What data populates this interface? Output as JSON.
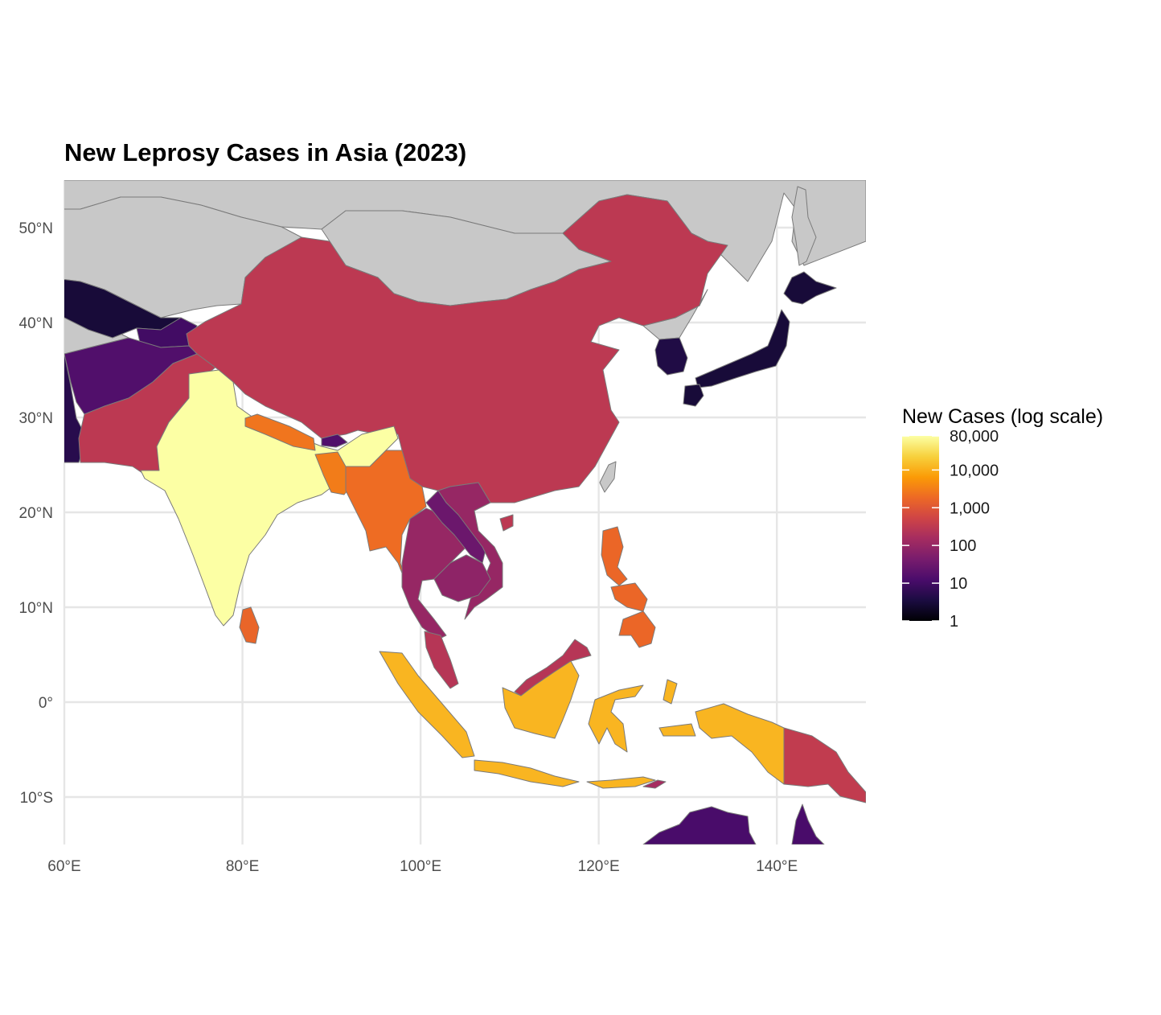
{
  "title": "New Leprosy Cases in Asia (2023)",
  "chart_data": {
    "type": "choropleth",
    "title": "New Leprosy Cases in Asia (2023)",
    "region": "Asia",
    "year": 2023,
    "projection": "equirectangular",
    "xlim": [
      60,
      150
    ],
    "ylim": [
      -15,
      55
    ],
    "x_ticks": [
      {
        "value": 60,
        "label": "60°E"
      },
      {
        "value": 80,
        "label": "80°E"
      },
      {
        "value": 100,
        "label": "100°E"
      },
      {
        "value": 120,
        "label": "120°E"
      },
      {
        "value": 140,
        "label": "140°E"
      }
    ],
    "y_ticks": [
      {
        "value": 50,
        "label": "50°N"
      },
      {
        "value": 40,
        "label": "40°N"
      },
      {
        "value": 30,
        "label": "30°N"
      },
      {
        "value": 20,
        "label": "20°N"
      },
      {
        "value": 10,
        "label": "10°N"
      },
      {
        "value": 0,
        "label": "0°"
      },
      {
        "value": -10,
        "label": "10°S"
      }
    ],
    "grid": true,
    "no_data_color": "#c8c8c8",
    "border_color": "#7a7a7a",
    "legend": {
      "title": "New Cases (log scale)",
      "scale": "log",
      "placement": "right",
      "palette": "inferno",
      "color_stops": [
        "#000004",
        "#1b0c41",
        "#4a0c6b",
        "#781c6d",
        "#a52c60",
        "#cf4446",
        "#ed6925",
        "#fb9b06",
        "#f7d13d",
        "#fcffa4"
      ],
      "domain": [
        1,
        80000
      ],
      "ticks": [
        {
          "value": 80000,
          "label": "80,000"
        },
        {
          "value": 10000,
          "label": "10,000"
        },
        {
          "value": 1000,
          "label": "1,000"
        },
        {
          "value": 100,
          "label": "100"
        },
        {
          "value": 10,
          "label": "10"
        },
        {
          "value": 1,
          "label": "1"
        }
      ]
    },
    "regions": [
      {
        "id": "india",
        "value": 80000
      },
      {
        "id": "indonesia",
        "value": 12000
      },
      {
        "id": "nepal",
        "value": 2500
      },
      {
        "id": "bangladesh",
        "value": 3000
      },
      {
        "id": "myanmar",
        "value": 2000
      },
      {
        "id": "sri-lanka",
        "value": 1600
      },
      {
        "id": "philippines",
        "value": 1700
      },
      {
        "id": "china",
        "value": 300
      },
      {
        "id": "pakistan",
        "value": 300
      },
      {
        "id": "papua-new-guinea",
        "value": 350
      },
      {
        "id": "malaysia",
        "value": 250
      },
      {
        "id": "thailand",
        "value": 100
      },
      {
        "id": "vietnam",
        "value": 100
      },
      {
        "id": "cambodia",
        "value": 80
      },
      {
        "id": "east-timor",
        "value": 150
      },
      {
        "id": "laos",
        "value": 30
      },
      {
        "id": "afghanistan",
        "value": 15
      },
      {
        "id": "tajikistan",
        "value": 10
      },
      {
        "id": "bhutan",
        "value": 15
      },
      {
        "id": "south-korea",
        "value": 4
      },
      {
        "id": "japan",
        "value": 3
      },
      {
        "id": "uzbekistan",
        "value": 3
      },
      {
        "id": "iran",
        "value": 5
      },
      {
        "id": "australia",
        "value": 12
      }
    ]
  }
}
